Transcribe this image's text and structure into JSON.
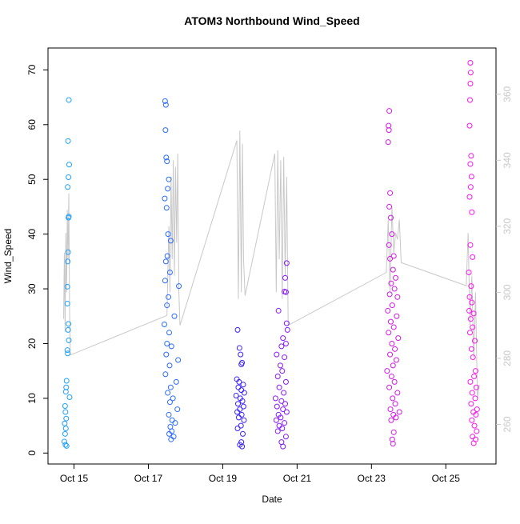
{
  "chart_data": {
    "type": "scatter",
    "title": "ATOM3 Northbound Wind_Speed",
    "xlabel": "Date",
    "ylabel": "Wind_Speed",
    "xlim": [
      14.3,
      26.35
    ],
    "ylim": [
      -2,
      74
    ],
    "y2lim": [
      248,
      374
    ],
    "xticks": [
      {
        "value": 15,
        "label": "Oct 15"
      },
      {
        "value": 17,
        "label": "Oct 17"
      },
      {
        "value": 19,
        "label": "Oct 19"
      },
      {
        "value": 21,
        "label": "Oct 21"
      },
      {
        "value": 23,
        "label": "Oct 23"
      },
      {
        "value": 25,
        "label": "Oct 25"
      }
    ],
    "yticks": [
      0,
      10,
      20,
      30,
      40,
      50,
      60,
      70
    ],
    "y2ticks": [
      260,
      280,
      300,
      320,
      340,
      360
    ],
    "y2_color": "#c8c8c8",
    "series": [
      {
        "type": "line",
        "axis": "y2",
        "color": "#c8c8c8",
        "x": [
          14.72,
          14.74,
          14.76,
          14.78,
          14.8,
          14.82,
          14.84,
          14.86,
          14.88,
          14.9,
          17.5,
          17.55,
          17.58,
          17.61,
          17.64,
          17.67,
          17.7,
          17.73,
          17.76,
          17.79,
          17.82,
          17.85,
          19.38,
          19.42,
          19.46,
          19.5,
          19.53,
          19.56,
          19.6,
          20.4,
          20.44,
          20.48,
          20.52,
          20.56,
          20.6,
          20.64,
          20.68,
          20.72,
          20.76,
          23.4,
          23.45,
          23.5,
          23.55,
          23.6,
          23.65,
          23.7,
          23.75,
          23.8,
          25.55,
          25.6,
          25.65,
          25.7,
          25.75,
          25.8,
          25.85,
          25.9
        ],
        "values": [
          292,
          312,
          288,
          318,
          300,
          325,
          310,
          330,
          295,
          281,
          293,
          320,
          300,
          335,
          310,
          340,
          305,
          338,
          315,
          342,
          300,
          290,
          346,
          298,
          349,
          300,
          345,
          310,
          299,
          342,
          300,
          343,
          310,
          340,
          298,
          341,
          305,
          335,
          290,
          306,
          322,
          300,
          326,
          312,
          318,
          316,
          322,
          309,
          302,
          318,
          290,
          305,
          280,
          300,
          268,
          272
        ]
      },
      {
        "color": "#1ea0ff",
        "x": [
          14.86,
          14.84,
          14.87,
          14.85,
          14.83,
          14.86,
          14.85,
          14.84,
          14.83,
          14.82,
          14.82,
          14.85,
          14.84,
          14.86,
          14.82,
          14.83,
          14.8,
          14.79,
          14.78,
          14.88,
          14.76,
          14.77,
          14.79,
          14.75,
          14.78,
          14.76,
          14.74,
          14.77,
          14.8
        ],
        "values": [
          64.5,
          57,
          52.7,
          50.4,
          48.6,
          43.2,
          43,
          36.7,
          35,
          30.4,
          27.3,
          23.6,
          22.5,
          20.6,
          18.8,
          18.2,
          13.2,
          12,
          11.2,
          10.2,
          8.6,
          7.5,
          6.3,
          5.4,
          4.5,
          3.5,
          2.1,
          1.5,
          1.3
        ]
      },
      {
        "color": "#2a6cff",
        "x": [
          17.45,
          17.47,
          17.46,
          17.48,
          17.5,
          17.55,
          17.52,
          17.44,
          17.49,
          17.53,
          17.6,
          17.51,
          17.47,
          17.58,
          17.45,
          17.82,
          17.54,
          17.5,
          17.7,
          17.43,
          17.56,
          17.5,
          17.62,
          17.48,
          17.8,
          17.57,
          17.46,
          17.75,
          17.6,
          17.52,
          17.66,
          17.58,
          17.78,
          17.55,
          17.64,
          17.72,
          17.59,
          17.63,
          17.56,
          17.68,
          17.61
        ],
        "values": [
          64.3,
          63.6,
          59,
          54,
          53.3,
          50,
          48.3,
          46.5,
          44.8,
          40,
          38.8,
          36,
          35,
          33,
          31.5,
          30.5,
          28.5,
          27,
          25,
          23.5,
          22,
          20,
          19.5,
          18,
          17,
          16,
          14.4,
          13,
          12,
          11,
          10,
          9.3,
          8,
          7,
          6,
          5.5,
          4.8,
          4,
          3.5,
          3,
          2.5
        ]
      },
      {
        "color": "#3a22ff",
        "x": [
          19.4,
          19.45,
          19.48,
          19.52,
          19.5,
          19.38,
          19.44,
          19.55,
          19.42,
          19.5,
          19.58,
          19.36,
          19.47,
          19.53,
          19.41,
          19.56,
          19.46,
          19.39,
          19.51,
          19.43,
          19.57,
          19.49,
          19.4,
          19.54,
          19.5,
          19.46,
          19.52
        ],
        "values": [
          22.5,
          19.2,
          18,
          16.5,
          16.2,
          13.5,
          13,
          12.5,
          12,
          11.5,
          11,
          10.5,
          10,
          9.5,
          9,
          8.5,
          8,
          7.5,
          7,
          6.5,
          6,
          5,
          4.5,
          3.5,
          2,
          1.5,
          1.2
        ]
      },
      {
        "color": "#8a18ff",
        "x": [
          20.72,
          20.68,
          20.66,
          20.7,
          20.5,
          20.72,
          20.74,
          20.62,
          20.7,
          20.58,
          20.45,
          20.66,
          20.55,
          20.6,
          20.48,
          20.7,
          20.52,
          20.64,
          20.42,
          20.58,
          20.68,
          20.46,
          20.62,
          20.72,
          20.5,
          20.56,
          20.44,
          20.66,
          20.52,
          20.6,
          20.48,
          20.7,
          20.58,
          20.62
        ],
        "values": [
          34.7,
          32,
          29.5,
          29.4,
          26,
          23.7,
          22.5,
          21,
          20,
          19.5,
          18,
          17.5,
          16,
          15,
          14,
          13,
          12,
          11,
          10,
          9.5,
          9,
          8.5,
          8,
          7.5,
          7,
          6.5,
          6,
          5.5,
          5,
          4.5,
          4,
          3,
          2,
          1.2
        ]
      },
      {
        "color": "#d418e8",
        "x": [
          23.48,
          23.46,
          23.47,
          23.45,
          23.5,
          23.48,
          23.52,
          23.55,
          23.47,
          23.6,
          23.5,
          23.58,
          23.65,
          23.53,
          23.62,
          23.49,
          23.7,
          23.56,
          23.44,
          23.68,
          23.52,
          23.6,
          23.46,
          23.72,
          23.55,
          23.63,
          23.5,
          23.67,
          23.58,
          23.42,
          23.54,
          23.62,
          23.48,
          23.7,
          23.57,
          23.64,
          23.51,
          23.75,
          23.59,
          23.66,
          23.53,
          23.6,
          23.56,
          23.58
        ],
        "values": [
          62.5,
          59.8,
          59,
          56.8,
          47.5,
          45,
          43,
          40,
          38,
          36,
          35.5,
          33.5,
          32,
          31,
          30,
          29,
          28.5,
          27,
          26,
          25,
          24,
          23,
          22,
          21,
          20,
          19,
          18,
          17,
          16,
          15,
          14,
          13,
          12,
          11,
          10,
          9,
          8,
          7.5,
          7,
          6.5,
          6,
          3.8,
          2.5,
          1.7
        ]
      },
      {
        "color": "#ff14f0",
        "x": [
          25.66,
          25.67,
          25.66,
          25.65,
          25.64,
          25.68,
          25.66,
          25.69,
          25.67,
          25.64,
          25.7,
          25.66,
          25.72,
          25.62,
          25.68,
          25.64,
          25.7,
          25.63,
          25.75,
          25.67,
          25.72,
          25.65,
          25.78,
          25.69,
          25.73,
          25.8,
          25.76,
          25.66,
          25.82,
          25.71,
          25.79,
          25.68,
          25.84,
          25.74,
          25.81,
          25.7,
          25.77,
          25.83,
          25.72,
          25.8,
          25.75
        ],
        "values": [
          71.3,
          69.5,
          67.5,
          64.5,
          59.8,
          54.3,
          52.8,
          50.5,
          48.6,
          46.8,
          44,
          38,
          35.8,
          33,
          30.5,
          28.5,
          27.5,
          26,
          25.5,
          24.5,
          23,
          22,
          20.5,
          19,
          17.5,
          15,
          14,
          13,
          12,
          11,
          10,
          9,
          8,
          7.5,
          7,
          6,
          5,
          4,
          3,
          2.5,
          1.8
        ]
      }
    ]
  }
}
